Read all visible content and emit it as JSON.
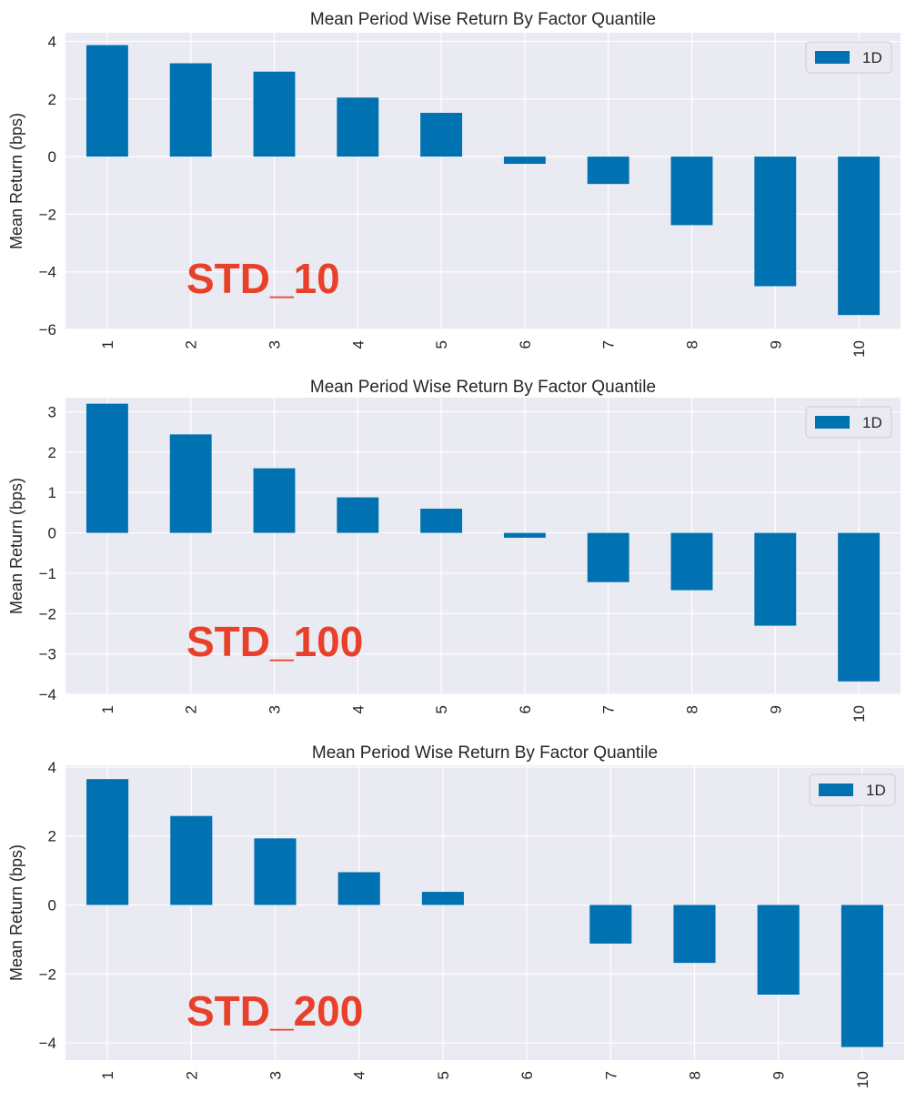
{
  "chart_data": [
    {
      "type": "bar",
      "title": "Mean Period Wise Return By Factor Quantile",
      "ylabel": "Mean Return (bps)",
      "xlabel": "",
      "categories": [
        "1",
        "2",
        "3",
        "4",
        "5",
        "6",
        "7",
        "8",
        "9",
        "10"
      ],
      "series": [
        {
          "name": "1D",
          "values": [
            3.87,
            3.24,
            2.95,
            2.05,
            1.52,
            -0.25,
            -0.95,
            -2.38,
            -4.5,
            -5.5
          ]
        }
      ],
      "ylim": [
        -6,
        4.3
      ],
      "yticks": [
        4,
        2,
        0,
        -2,
        -4,
        -6
      ],
      "ytick_labels": [
        "4",
        "2",
        "0",
        "−2",
        "−4",
        "−6"
      ],
      "legend_position": "top-right",
      "annotation": "STD_10",
      "bar_color": "#0072B2",
      "annotation_color": "#E8402A"
    },
    {
      "type": "bar",
      "title": "Mean Period Wise Return By Factor Quantile",
      "ylabel": "Mean Return (bps)",
      "xlabel": "",
      "categories": [
        "1",
        "2",
        "3",
        "4",
        "5",
        "6",
        "7",
        "8",
        "9",
        "10"
      ],
      "series": [
        {
          "name": "1D",
          "values": [
            3.2,
            2.44,
            1.6,
            0.88,
            0.6,
            -0.12,
            -1.22,
            -1.42,
            -2.3,
            -3.68
          ]
        }
      ],
      "ylim": [
        -4,
        3.35
      ],
      "yticks": [
        3,
        2,
        1,
        0,
        -1,
        -2,
        -3,
        -4
      ],
      "ytick_labels": [
        "3",
        "2",
        "1",
        "0",
        "−1",
        "−2",
        "−3",
        "−4"
      ],
      "legend_position": "top-right",
      "annotation": "STD_100",
      "bar_color": "#0072B2",
      "annotation_color": "#E8402A"
    },
    {
      "type": "bar",
      "title": "Mean Period Wise Return By Factor Quantile",
      "ylabel": "Mean Return (bps)",
      "xlabel": "",
      "categories": [
        "1",
        "2",
        "3",
        "4",
        "5",
        "6",
        "7",
        "8",
        "9",
        "10"
      ],
      "series": [
        {
          "name": "1D",
          "values": [
            3.65,
            2.58,
            1.93,
            0.95,
            0.38,
            0.0,
            -1.12,
            -1.68,
            -2.6,
            -4.12
          ]
        }
      ],
      "ylim": [
        -4.5,
        4.05
      ],
      "yticks": [
        4,
        2,
        0,
        -2,
        -4
      ],
      "ytick_labels": [
        "4",
        "2",
        "0",
        "−2",
        "−4"
      ],
      "legend_position": "top-right",
      "annotation": "STD_200",
      "bar_color": "#0072B2",
      "annotation_color": "#E8402A"
    }
  ]
}
